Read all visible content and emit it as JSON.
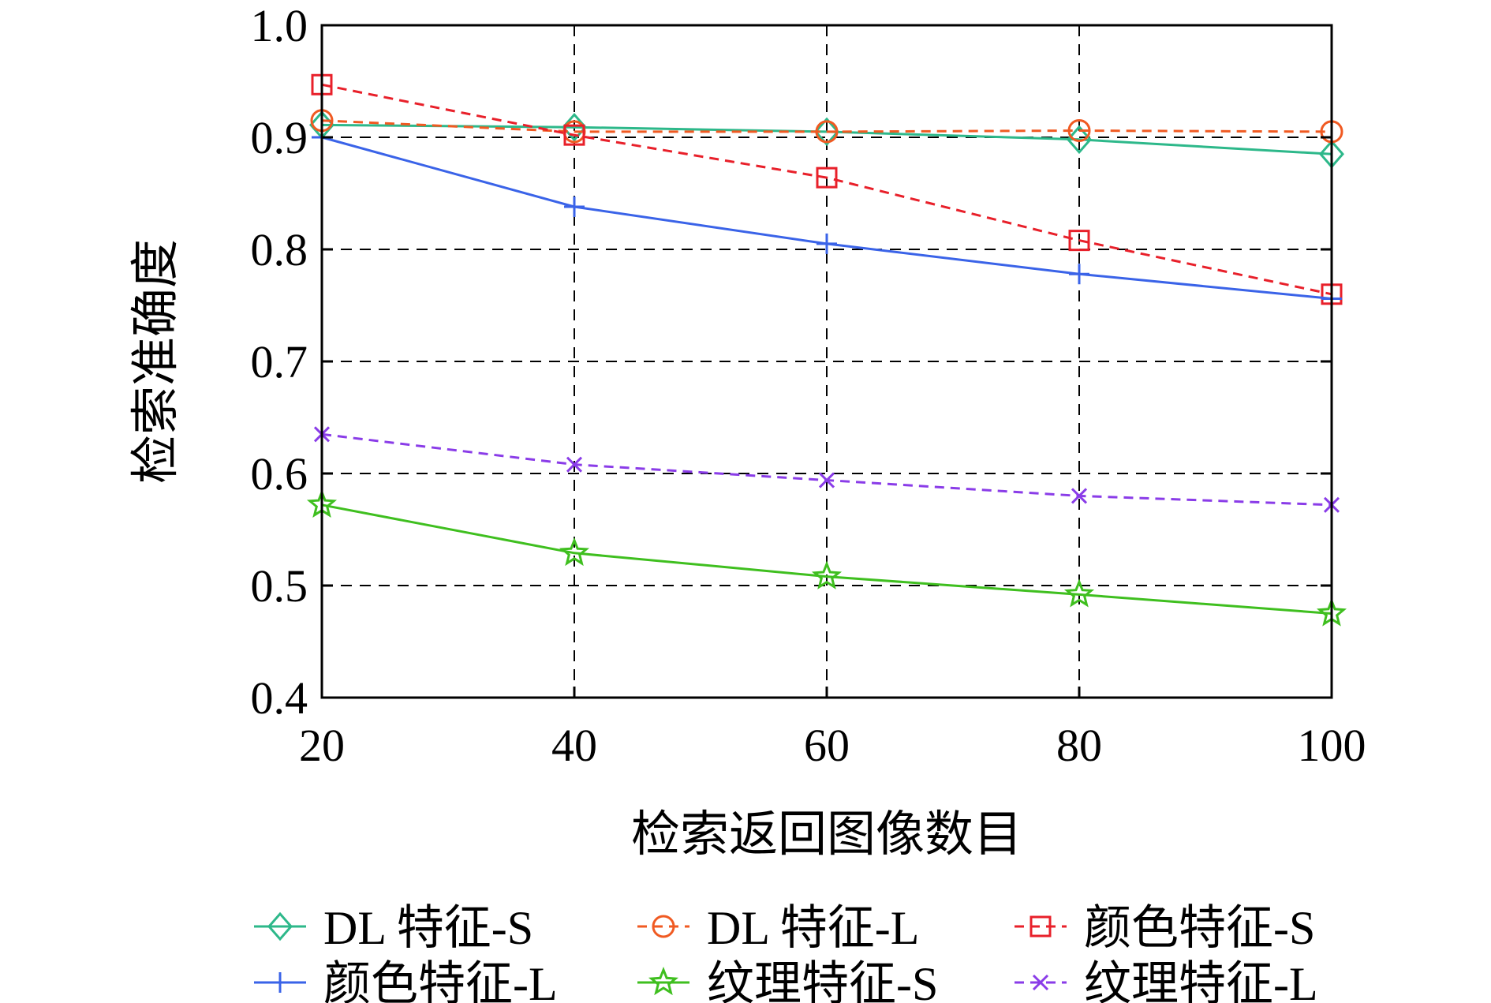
{
  "chart_data": {
    "type": "line",
    "title": "",
    "xlabel": "检索返回图像数目",
    "ylabel": "检索准确度",
    "x": [
      20,
      40,
      60,
      80,
      100
    ],
    "xlim": [
      20,
      100
    ],
    "ylim": [
      0.4,
      1.0
    ],
    "xticks": [
      "20",
      "40",
      "60",
      "80",
      "100"
    ],
    "yticks": [
      "0.4",
      "0.5",
      "0.6",
      "0.7",
      "0.8",
      "0.9",
      "1.0"
    ],
    "grid": true,
    "legend_position": "bottom",
    "series": [
      {
        "name": "DL 特征-S",
        "color": "#2db88a",
        "dash": "solid",
        "marker": "diamond",
        "values": [
          0.911,
          0.909,
          0.905,
          0.898,
          0.885
        ]
      },
      {
        "name": "DL 特征-L",
        "color": "#f05a22",
        "dash": "dashed",
        "marker": "circle",
        "values": [
          0.915,
          0.905,
          0.905,
          0.906,
          0.905
        ]
      },
      {
        "name": "颜色特征-S",
        "color": "#e8202a",
        "dash": "dashed",
        "marker": "square",
        "values": [
          0.947,
          0.902,
          0.864,
          0.808,
          0.76
        ]
      },
      {
        "name": "颜色特征-L",
        "color": "#3a63e8",
        "dash": "solid",
        "marker": "plus",
        "values": [
          0.9,
          0.838,
          0.805,
          0.778,
          0.756
        ]
      },
      {
        "name": "纹理特征-S",
        "color": "#3fbf1f",
        "dash": "solid",
        "marker": "star",
        "values": [
          0.572,
          0.529,
          0.508,
          0.492,
          0.475
        ]
      },
      {
        "name": "纹理特征-L",
        "color": "#8a3ce8",
        "dash": "dashed",
        "marker": "cross",
        "values": [
          0.635,
          0.608,
          0.594,
          0.58,
          0.572
        ]
      }
    ]
  }
}
